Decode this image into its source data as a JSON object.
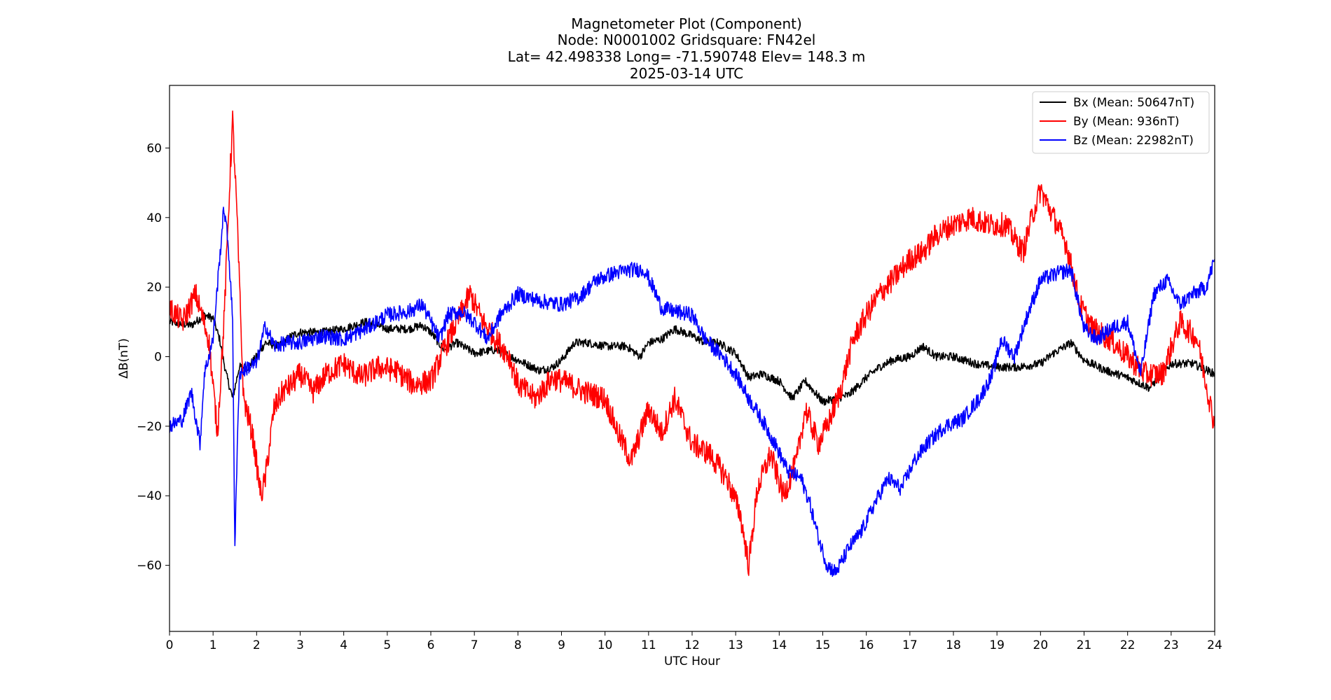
{
  "chart_data": {
    "type": "line",
    "title_lines": [
      "Magnetometer Plot (Component)",
      "Node:  N0001002     Gridsquare:  FN42el",
      "Lat= 42.498338    Long= -71.590748    Elev= 148.3 m",
      "2025-03-14  UTC"
    ],
    "xlabel": "UTC Hour",
    "ylabel": "ΔB(nT)",
    "xlim": [
      0,
      24
    ],
    "ylim": [
      -79,
      78
    ],
    "xticks": [
      0,
      1,
      2,
      3,
      4,
      5,
      6,
      7,
      8,
      9,
      10,
      11,
      12,
      13,
      14,
      15,
      16,
      17,
      18,
      19,
      20,
      21,
      22,
      23,
      24
    ],
    "yticks": [
      -60,
      -40,
      -20,
      0,
      20,
      40,
      60
    ],
    "ytick_labels": [
      "−60",
      "−40",
      "−20",
      "0",
      "20",
      "40",
      "60"
    ],
    "legend_position": "top-right",
    "series": [
      {
        "name": "Bx",
        "label": "Bx (Mean: 50647nT)",
        "color": "#000000",
        "points": [
          [
            0,
            10
          ],
          [
            0.5,
            9
          ],
          [
            0.8,
            12
          ],
          [
            1.0,
            11
          ],
          [
            1.15,
            5
          ],
          [
            1.3,
            -5
          ],
          [
            1.45,
            -12
          ],
          [
            1.6,
            -3
          ],
          [
            1.8,
            -3
          ],
          [
            2.0,
            0
          ],
          [
            2.2,
            4
          ],
          [
            2.5,
            3
          ],
          [
            2.8,
            6
          ],
          [
            3.0,
            7
          ],
          [
            3.5,
            7
          ],
          [
            4.0,
            8
          ],
          [
            4.5,
            10
          ],
          [
            5.0,
            8
          ],
          [
            5.5,
            8
          ],
          [
            5.8,
            9
          ],
          [
            6.0,
            7
          ],
          [
            6.3,
            2
          ],
          [
            6.6,
            4
          ],
          [
            7.0,
            1
          ],
          [
            7.5,
            2
          ],
          [
            8.0,
            -1
          ],
          [
            8.5,
            -4
          ],
          [
            8.8,
            -3
          ],
          [
            9.0,
            -1
          ],
          [
            9.3,
            4
          ],
          [
            9.6,
            4
          ],
          [
            10.0,
            3
          ],
          [
            10.5,
            3
          ],
          [
            10.8,
            0
          ],
          [
            11.0,
            4
          ],
          [
            11.3,
            5
          ],
          [
            11.6,
            8
          ],
          [
            12.0,
            6
          ],
          [
            12.3,
            4
          ],
          [
            12.6,
            4
          ],
          [
            13.0,
            1
          ],
          [
            13.3,
            -6
          ],
          [
            13.6,
            -5
          ],
          [
            14.0,
            -7
          ],
          [
            14.3,
            -12
          ],
          [
            14.6,
            -7
          ],
          [
            15.0,
            -13
          ],
          [
            15.3,
            -12
          ],
          [
            15.6,
            -11
          ],
          [
            16.0,
            -6
          ],
          [
            16.3,
            -3
          ],
          [
            16.6,
            -1
          ],
          [
            17.0,
            0
          ],
          [
            17.3,
            3
          ],
          [
            17.6,
            0
          ],
          [
            18.0,
            0
          ],
          [
            18.5,
            -2
          ],
          [
            19.0,
            -3
          ],
          [
            19.5,
            -3
          ],
          [
            20.0,
            -2
          ],
          [
            20.3,
            1
          ],
          [
            20.7,
            4
          ],
          [
            21.0,
            -1
          ],
          [
            21.5,
            -4
          ],
          [
            22.0,
            -6
          ],
          [
            22.5,
            -9
          ],
          [
            23.0,
            -2
          ],
          [
            23.5,
            -2
          ],
          [
            24.0,
            -5
          ]
        ]
      },
      {
        "name": "By",
        "label": "By (Mean: 936nT)",
        "color": "#ff0000",
        "points": [
          [
            0,
            14
          ],
          [
            0.3,
            10
          ],
          [
            0.6,
            18
          ],
          [
            0.9,
            5
          ],
          [
            1.1,
            -22
          ],
          [
            1.25,
            10
          ],
          [
            1.4,
            55
          ],
          [
            1.45,
            68
          ],
          [
            1.55,
            40
          ],
          [
            1.7,
            -12
          ],
          [
            1.9,
            -22
          ],
          [
            2.1,
            -40
          ],
          [
            2.2,
            -35
          ],
          [
            2.4,
            -15
          ],
          [
            2.6,
            -10
          ],
          [
            2.8,
            -8
          ],
          [
            3.0,
            -5
          ],
          [
            3.3,
            -10
          ],
          [
            3.6,
            -5
          ],
          [
            4.0,
            -2
          ],
          [
            4.4,
            -6
          ],
          [
            4.8,
            -3
          ],
          [
            5.2,
            -4
          ],
          [
            5.6,
            -8
          ],
          [
            6.0,
            -7
          ],
          [
            6.3,
            2
          ],
          [
            6.6,
            10
          ],
          [
            6.9,
            18
          ],
          [
            7.2,
            10
          ],
          [
            7.5,
            5
          ],
          [
            7.8,
            0
          ],
          [
            8.0,
            -8
          ],
          [
            8.4,
            -12
          ],
          [
            8.8,
            -6
          ],
          [
            9.2,
            -8
          ],
          [
            9.5,
            -10
          ],
          [
            10.0,
            -12
          ],
          [
            10.3,
            -22
          ],
          [
            10.6,
            -30
          ],
          [
            11.0,
            -15
          ],
          [
            11.3,
            -22
          ],
          [
            11.6,
            -12
          ],
          [
            12.0,
            -25
          ],
          [
            12.4,
            -28
          ],
          [
            12.8,
            -35
          ],
          [
            13.1,
            -45
          ],
          [
            13.3,
            -60
          ],
          [
            13.5,
            -38
          ],
          [
            13.8,
            -28
          ],
          [
            14.1,
            -40
          ],
          [
            14.4,
            -30
          ],
          [
            14.6,
            -15
          ],
          [
            14.9,
            -25
          ],
          [
            15.1,
            -20
          ],
          [
            15.4,
            -10
          ],
          [
            15.7,
            5
          ],
          [
            16.0,
            12
          ],
          [
            16.3,
            18
          ],
          [
            16.6,
            22
          ],
          [
            17.0,
            28
          ],
          [
            17.3,
            30
          ],
          [
            17.6,
            35
          ],
          [
            18.0,
            38
          ],
          [
            18.4,
            40
          ],
          [
            18.8,
            38
          ],
          [
            19.2,
            38
          ],
          [
            19.6,
            30
          ],
          [
            19.8,
            40
          ],
          [
            20.0,
            48
          ],
          [
            20.3,
            40
          ],
          [
            20.6,
            32
          ],
          [
            20.9,
            15
          ],
          [
            21.2,
            8
          ],
          [
            21.6,
            5
          ],
          [
            22.0,
            0
          ],
          [
            22.4,
            -5
          ],
          [
            22.8,
            -5
          ],
          [
            23.2,
            10
          ],
          [
            23.6,
            5
          ],
          [
            24.0,
            -20
          ]
        ]
      },
      {
        "name": "Bz",
        "label": "Bz (Mean: 22982nT)",
        "color": "#0000ff",
        "points": [
          [
            0,
            -20
          ],
          [
            0.3,
            -18
          ],
          [
            0.5,
            -10
          ],
          [
            0.7,
            -25
          ],
          [
            0.8,
            -5
          ],
          [
            1.0,
            5
          ],
          [
            1.15,
            28
          ],
          [
            1.25,
            43
          ],
          [
            1.35,
            32
          ],
          [
            1.45,
            10
          ],
          [
            1.5,
            -55
          ],
          [
            1.6,
            -5
          ],
          [
            1.8,
            -3
          ],
          [
            2.0,
            -2
          ],
          [
            2.2,
            9
          ],
          [
            2.4,
            3
          ],
          [
            2.7,
            4
          ],
          [
            3.0,
            4
          ],
          [
            3.5,
            6
          ],
          [
            4.0,
            5
          ],
          [
            4.5,
            8
          ],
          [
            5.0,
            12
          ],
          [
            5.5,
            13
          ],
          [
            5.8,
            15
          ],
          [
            6.0,
            10
          ],
          [
            6.2,
            5
          ],
          [
            6.4,
            12
          ],
          [
            6.7,
            13
          ],
          [
            7.0,
            10
          ],
          [
            7.3,
            5
          ],
          [
            7.6,
            12
          ],
          [
            8.0,
            18
          ],
          [
            8.5,
            16
          ],
          [
            9.0,
            15
          ],
          [
            9.4,
            17
          ],
          [
            9.8,
            22
          ],
          [
            10.2,
            24
          ],
          [
            10.6,
            25
          ],
          [
            10.9,
            25
          ],
          [
            11.1,
            20
          ],
          [
            11.3,
            14
          ],
          [
            11.6,
            13
          ],
          [
            12.0,
            12
          ],
          [
            12.3,
            5
          ],
          [
            12.7,
            0
          ],
          [
            13.0,
            -5
          ],
          [
            13.3,
            -12
          ],
          [
            13.6,
            -18
          ],
          [
            13.9,
            -25
          ],
          [
            14.2,
            -33
          ],
          [
            14.5,
            -35
          ],
          [
            14.7,
            -42
          ],
          [
            14.9,
            -52
          ],
          [
            15.1,
            -60
          ],
          [
            15.3,
            -62
          ],
          [
            15.6,
            -55
          ],
          [
            15.9,
            -50
          ],
          [
            16.2,
            -42
          ],
          [
            16.5,
            -35
          ],
          [
            16.8,
            -38
          ],
          [
            17.1,
            -30
          ],
          [
            17.4,
            -25
          ],
          [
            17.8,
            -20
          ],
          [
            18.2,
            -18
          ],
          [
            18.6,
            -12
          ],
          [
            18.9,
            -5
          ],
          [
            19.1,
            5
          ],
          [
            19.4,
            0
          ],
          [
            19.7,
            12
          ],
          [
            20.0,
            22
          ],
          [
            20.4,
            24
          ],
          [
            20.7,
            25
          ],
          [
            21.0,
            8
          ],
          [
            21.3,
            5
          ],
          [
            21.6,
            8
          ],
          [
            22.0,
            10
          ],
          [
            22.3,
            -5
          ],
          [
            22.6,
            18
          ],
          [
            22.9,
            22
          ],
          [
            23.2,
            15
          ],
          [
            23.5,
            18
          ],
          [
            23.8,
            20
          ],
          [
            24.0,
            28
          ]
        ]
      }
    ]
  }
}
